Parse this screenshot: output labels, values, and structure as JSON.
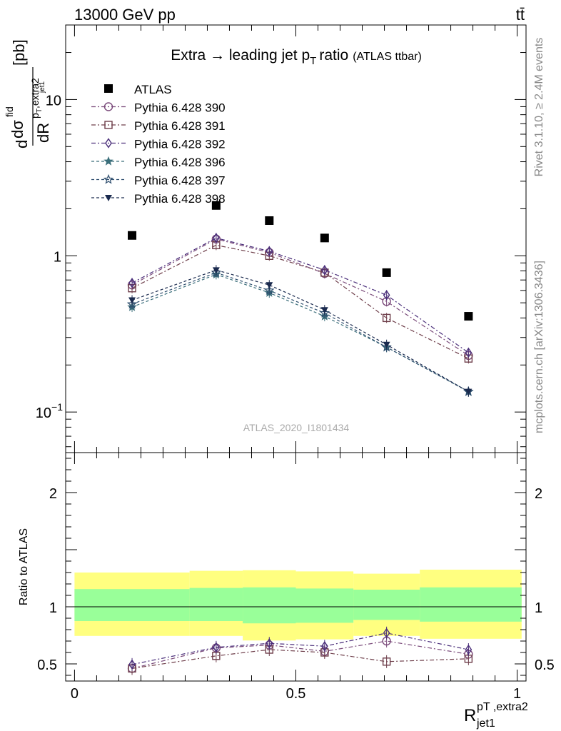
{
  "header": {
    "left": "13000 GeV pp",
    "right": "tt̄"
  },
  "side_labels": {
    "rivet": "Rivet 3.1.10, ≥ 2.4M events",
    "mcplots": "mcplots.cern.ch [arXiv:1306.3436]"
  },
  "chart_data": [
    {
      "type": "scatter",
      "title": "Extra → leading jet p_T ratio (ATLAS ttbar)",
      "title_parts": {
        "main": "Extra",
        "arrow": "→",
        "rest": "leading jet p",
        "sub": "T",
        "after": "ratio",
        "small": "(ATLAS ttbar)"
      },
      "ylabel": "dσ^fid / dR^{pT,extra2}_{jet1} [pb]",
      "ylabel_parts": {
        "d1": "d",
        "sigma": "dσ",
        "sup": "fid",
        "dR": "dR",
        "p": "p",
        "sub_small": "T",
        "extra": ",extra2",
        "jet": "jet1",
        "unit": "[pb]"
      },
      "yscale": "log",
      "ylim": [
        0.055,
        30
      ],
      "yticks": [
        {
          "value": 0.1,
          "label": "10",
          "exp": "−1"
        },
        {
          "value": 1,
          "label": "1",
          "exp": ""
        },
        {
          "value": 10,
          "label": "10",
          "exp": ""
        }
      ],
      "xlim": [
        -0.02,
        1.02
      ],
      "watermark": "ATLAS_2020_I1801434",
      "legend_position": "top-left",
      "x": [
        0.13,
        0.32,
        0.44,
        0.565,
        0.705,
        0.89
      ],
      "series": [
        {
          "name": "ATLAS",
          "marker": "square-filled",
          "color": "#000000",
          "dash": "",
          "values": [
            1.35,
            2.1,
            1.68,
            1.3,
            0.78,
            0.41
          ]
        },
        {
          "name": "Pythia 6.428 390",
          "marker": "circle-open",
          "color": "#7a4a7a",
          "dash": "6,3,2,3",
          "values": [
            0.65,
            1.28,
            1.05,
            0.77,
            0.51,
            0.23
          ]
        },
        {
          "name": "Pythia 6.428 391",
          "marker": "square-open",
          "color": "#6e3e4a",
          "dash": "6,3,2,3",
          "values": [
            0.62,
            1.17,
            1.0,
            0.78,
            0.4,
            0.22
          ]
        },
        {
          "name": "Pythia 6.428 392",
          "marker": "diamond-open",
          "color": "#4a2e7a",
          "dash": "6,3,2,3",
          "values": [
            0.67,
            1.3,
            1.07,
            0.81,
            0.56,
            0.24
          ]
        },
        {
          "name": "Pythia 6.428 396",
          "marker": "star-filled",
          "color": "#3a6e7a",
          "dash": "4,3",
          "values": [
            0.47,
            0.76,
            0.58,
            0.41,
            0.26,
            0.135
          ]
        },
        {
          "name": "Pythia 6.428 397",
          "marker": "star-open",
          "color": "#2e4e6e",
          "dash": "4,3",
          "values": [
            0.49,
            0.78,
            0.6,
            0.43,
            0.26,
            0.135
          ]
        },
        {
          "name": "Pythia 6.428 398",
          "marker": "triangle-down-filled",
          "color": "#1a2a4e",
          "dash": "4,3",
          "values": [
            0.52,
            0.81,
            0.65,
            0.45,
            0.27,
            0.135
          ]
        }
      ]
    },
    {
      "type": "scatter",
      "ylabel": "Ratio to ATLAS",
      "xlabel_parts": {
        "R": "R",
        "sup": "pT ,extra2",
        "sub": "jet1"
      },
      "ylim": [
        0.35,
        2.35
      ],
      "yticks": [
        0.5,
        1,
        2
      ],
      "xticks": [
        0,
        0.5,
        1
      ],
      "xlim": [
        -0.02,
        1.02
      ],
      "bands": [
        {
          "xmin": 0.0,
          "xmax": 0.26,
          "yellow": [
            0.745,
            1.3
          ],
          "green": [
            0.875,
            1.155
          ]
        },
        {
          "xmin": 0.26,
          "xmax": 0.38,
          "yellow": [
            0.745,
            1.315
          ],
          "green": [
            0.875,
            1.165
          ]
        },
        {
          "xmin": 0.38,
          "xmax": 0.5,
          "yellow": [
            0.705,
            1.32
          ],
          "green": [
            0.855,
            1.17
          ]
        },
        {
          "xmin": 0.5,
          "xmax": 0.63,
          "yellow": [
            0.715,
            1.31
          ],
          "green": [
            0.86,
            1.16
          ]
        },
        {
          "xmin": 0.63,
          "xmax": 0.78,
          "yellow": [
            0.745,
            1.29
          ],
          "green": [
            0.885,
            1.15
          ]
        },
        {
          "xmin": 0.78,
          "xmax": 1.01,
          "yellow": [
            0.72,
            1.325
          ],
          "green": [
            0.87,
            1.17
          ]
        }
      ],
      "x": [
        0.13,
        0.32,
        0.44,
        0.565,
        0.705,
        0.89
      ],
      "series": [
        {
          "name": "Pythia 6.428 390",
          "values": [
            0.46,
            0.64,
            0.665,
            0.61,
            0.7,
            0.585
          ]
        },
        {
          "name": "Pythia 6.428 391",
          "values": [
            0.46,
            0.57,
            0.625,
            0.6,
            0.52,
            0.545
          ]
        },
        {
          "name": "Pythia 6.428 392",
          "values": [
            0.495,
            0.645,
            0.68,
            0.655,
            0.77,
            0.625
          ]
        }
      ]
    }
  ]
}
